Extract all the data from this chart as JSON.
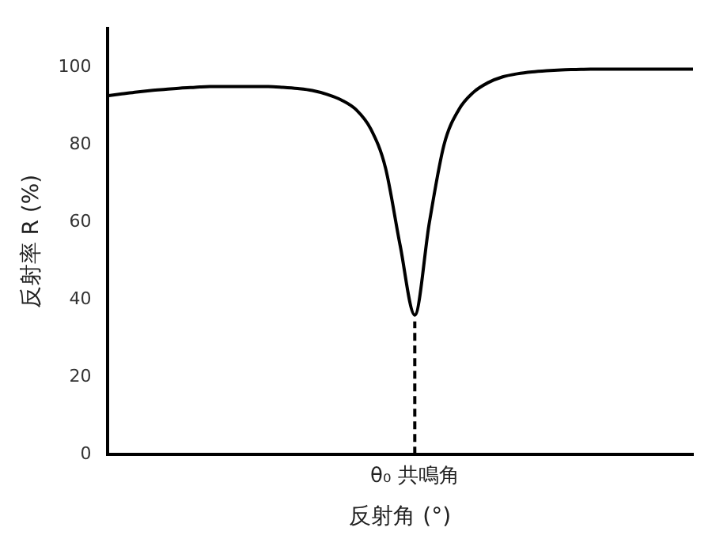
{
  "chart_data": {
    "type": "line",
    "xlabel": "反射角 (°)",
    "ylabel": "反射率 R (%)",
    "categories": [
      null,
      null,
      null,
      null,
      null,
      null,
      null,
      null,
      null,
      null,
      null,
      null,
      null,
      null,
      null,
      null,
      null,
      null,
      null,
      null,
      null,
      "θ₀ 共鳴角",
      null,
      null,
      null,
      null,
      null,
      null,
      null,
      null,
      null,
      null,
      null,
      null,
      null,
      null,
      null,
      null,
      null,
      null,
      null
    ],
    "series": [
      {
        "color": "#000000",
        "values": [
          92.6,
          93.1,
          93.6,
          94,
          94.3,
          94.6,
          94.8,
          95,
          95,
          95,
          95,
          95,
          94.8,
          94.5,
          94,
          93,
          91.5,
          89,
          84,
          74,
          54,
          36,
          60,
          80,
          89,
          93.5,
          96,
          97.5,
          98.3,
          98.8,
          99.1,
          99.3,
          99.4,
          99.5,
          99.5,
          99.5,
          99.5,
          99.5,
          99.5,
          99.5,
          99.5
        ]
      }
    ],
    "ylim": [
      0,
      110
    ],
    "yticks": [
      0,
      20,
      40,
      60,
      80,
      100
    ],
    "grid": false,
    "legend": false,
    "marker": "none",
    "line_style": "solid",
    "ref_lines": [
      {
        "axis": "x",
        "value": "θ₀ 共鳴角",
        "line_style": "dashed",
        "color": "#000000"
      }
    ]
  }
}
